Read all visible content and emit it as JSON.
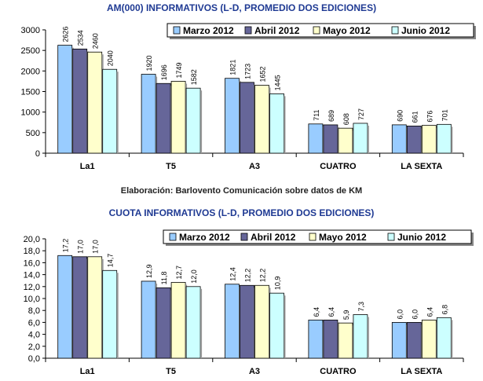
{
  "credit": "Elaboración: Barlovento Comunicación sobre datos de KM",
  "colors": {
    "s0": "#99ccff",
    "s1": "#666699",
    "s2": "#ffffcc",
    "s3": "#ccffff"
  },
  "chart_data": [
    {
      "type": "bar",
      "title": "AM(000) INFORMATIVOS (L-D, PROMEDIO DOS EDICIONES)",
      "categories": [
        "La1",
        "T5",
        "A3",
        "CUATRO",
        "LA SEXTA"
      ],
      "ylim": [
        0,
        3000
      ],
      "yticks": [
        "0",
        "500",
        "1000",
        "1500",
        "2000",
        "2500",
        "3000"
      ],
      "legend_position": "top-right",
      "series": [
        {
          "name": "Marzo 2012",
          "values": [
            2626,
            1920,
            1821,
            711,
            690
          ],
          "labels": [
            "2626",
            "1920",
            "1821",
            "711",
            "690"
          ]
        },
        {
          "name": "Abril 2012",
          "values": [
            2534,
            1696,
            1723,
            689,
            661
          ],
          "labels": [
            "2534",
            "1696",
            "1723",
            "689",
            "661"
          ]
        },
        {
          "name": "Mayo 2012",
          "values": [
            2460,
            1749,
            1652,
            608,
            676
          ],
          "labels": [
            "2460",
            "1749",
            "1652",
            "608",
            "676"
          ]
        },
        {
          "name": "Junio 2012",
          "values": [
            2040,
            1582,
            1445,
            727,
            701
          ],
          "labels": [
            "2040",
            "1582",
            "1445",
            "727",
            "701"
          ]
        }
      ]
    },
    {
      "type": "bar",
      "title": "CUOTA INFORMATIVOS (L-D, PROMEDIO DOS EDICIONES)",
      "categories": [
        "La1",
        "T5",
        "A3",
        "CUATRO",
        "LA SEXTA"
      ],
      "ylim": [
        0,
        20
      ],
      "yticks": [
        "0,0",
        "2,0",
        "4,0",
        "6,0",
        "8,0",
        "10,0",
        "12,0",
        "14,0",
        "16,0",
        "18,0",
        "20,0"
      ],
      "legend_position": "top-right",
      "series": [
        {
          "name": "Marzo 2012",
          "values": [
            17.2,
            12.9,
            12.4,
            6.4,
            6.0
          ],
          "labels": [
            "17,2",
            "12,9",
            "12,4",
            "6,4",
            "6,0"
          ]
        },
        {
          "name": "Abril 2012",
          "values": [
            17.0,
            11.8,
            12.2,
            6.4,
            6.0
          ],
          "labels": [
            "17,0",
            "11,8",
            "12,2",
            "6,4",
            "6,0"
          ]
        },
        {
          "name": "Mayo 2012",
          "values": [
            17.0,
            12.7,
            12.2,
            5.9,
            6.4
          ],
          "labels": [
            "17,0",
            "12,7",
            "12,2",
            "5,9",
            "6,4"
          ]
        },
        {
          "name": "Junio 2012",
          "values": [
            14.7,
            12.0,
            10.9,
            7.3,
            6.8
          ],
          "labels": [
            "14,7",
            "12,0",
            "10,9",
            "7,3",
            "6,8"
          ]
        }
      ]
    }
  ]
}
